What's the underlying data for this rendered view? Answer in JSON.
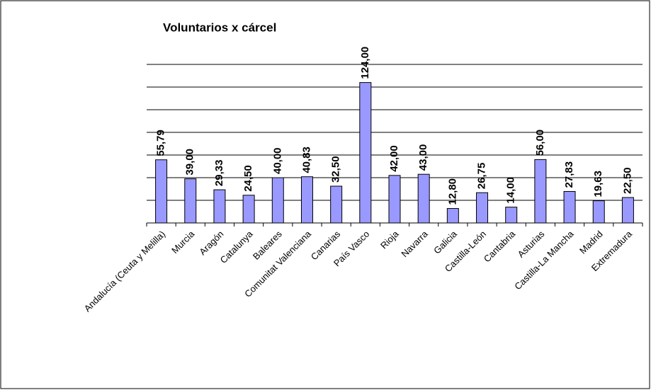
{
  "chart_data": {
    "type": "bar",
    "title": "Voluntarios x cárcel",
    "categories": [
      "Andalucía (Ceuta y Melilla)",
      "Murcia",
      "Aragón",
      "Catalunya",
      "Baleares",
      "Comunitat Valenciana",
      "Canarias",
      "País Vasco",
      "Rioja",
      "Navarra",
      "Galicia",
      "Castilla-León",
      "Cantabria",
      "Asturias",
      "Castilla-La Mancha",
      "Madrid",
      "Extremadura"
    ],
    "values": [
      55.79,
      39.0,
      29.33,
      24.5,
      40.0,
      40.83,
      32.5,
      124.0,
      42.0,
      43.0,
      12.8,
      26.75,
      14.0,
      56.0,
      27.83,
      19.63,
      22.5
    ],
    "value_labels": [
      "55,79",
      "39,00",
      "29,33",
      "24,50",
      "40,00",
      "40,83",
      "32,50",
      "124,00",
      "42,00",
      "43,00",
      "12,80",
      "26,75",
      "14,00",
      "56,00",
      "27,83",
      "19,63",
      "22,50"
    ],
    "color": "#9999ff",
    "ylim": [
      0,
      140
    ],
    "yticks": [
      0,
      20,
      40,
      60,
      80,
      100,
      120,
      140
    ],
    "grid": true
  }
}
